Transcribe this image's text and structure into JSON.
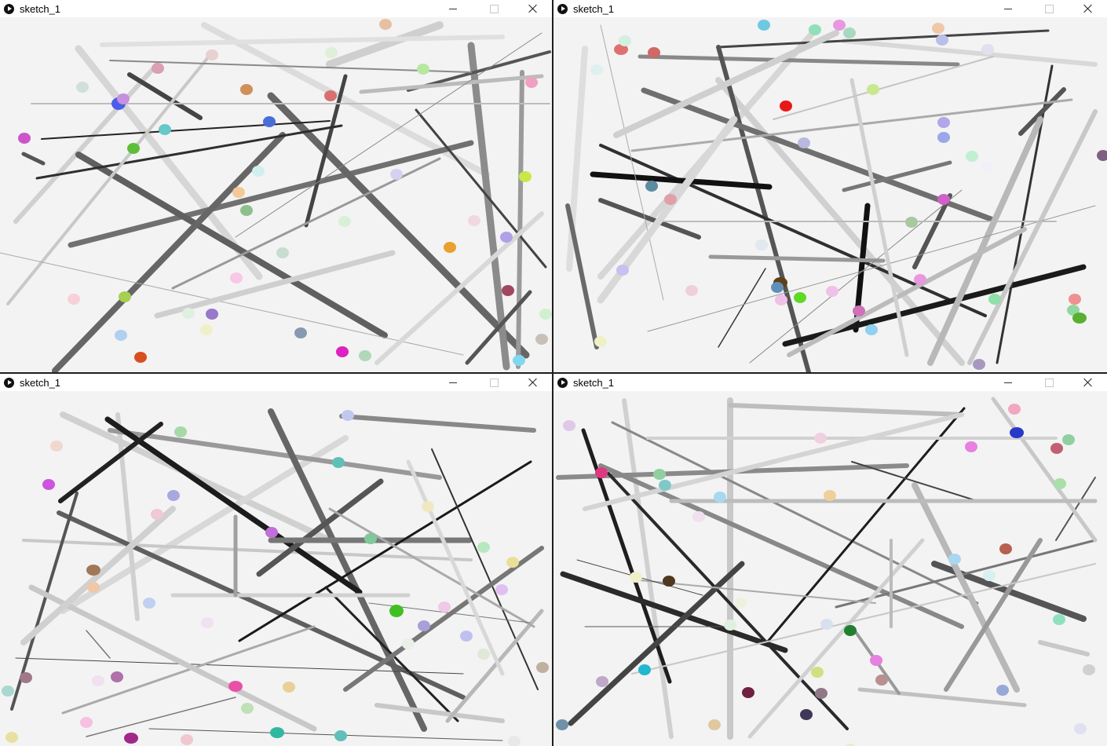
{
  "windows": [
    {
      "title": "sketch_1"
    },
    {
      "title": "sketch_1"
    },
    {
      "title": "sketch_1"
    },
    {
      "title": "sketch_1"
    }
  ],
  "controls": {
    "minimize": "–",
    "maximize": "□",
    "close": "✕"
  }
}
